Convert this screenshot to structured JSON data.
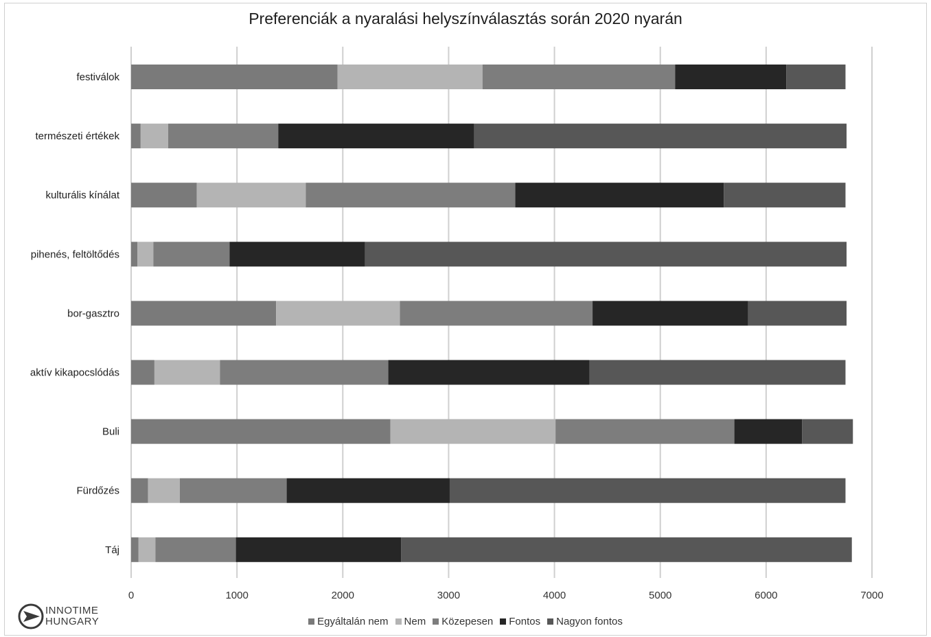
{
  "chart_data": {
    "type": "bar",
    "orientation": "horizontal",
    "stacked": true,
    "title": "Preferenciák a nyaralási helyszínválasztás során 2020 nyarán",
    "categories": [
      "festiválok",
      "természeti értékek",
      "kulturális kínálat",
      "pihenés, feltöltődés",
      "bor-gasztro",
      "aktív kikapocslódás",
      "Buli",
      "Fürdőzés",
      "Táj"
    ],
    "series": [
      {
        "name": "Egyáltalán nem",
        "color": "#7a7a7a",
        "values": [
          1950,
          90,
          620,
          60,
          1370,
          220,
          2450,
          160,
          70
        ]
      },
      {
        "name": "Nem",
        "color": "#b4b4b4",
        "values": [
          1370,
          260,
          1030,
          150,
          1170,
          620,
          1560,
          300,
          160
        ]
      },
      {
        "name": "Közepesen",
        "color": "#7d7d7d",
        "values": [
          1820,
          1040,
          1980,
          720,
          1820,
          1590,
          1690,
          1010,
          760
        ]
      },
      {
        "name": "Fontos",
        "color": "#262626",
        "values": [
          1050,
          1850,
          1970,
          1280,
          1470,
          1900,
          640,
          1540,
          1560
        ]
      },
      {
        "name": "Nagyon fontos",
        "color": "#575757",
        "values": [
          560,
          3520,
          1150,
          4550,
          930,
          2420,
          480,
          3740,
          4260
        ]
      }
    ],
    "xlim": [
      0,
      7000
    ],
    "xticks": [
      "0",
      "1000",
      "2000",
      "3000",
      "4000",
      "5000",
      "6000",
      "7000"
    ],
    "grid": true,
    "legend_position": "bottom"
  },
  "logo": {
    "line1": "INNOTIME",
    "line2": "HUNGARY"
  }
}
